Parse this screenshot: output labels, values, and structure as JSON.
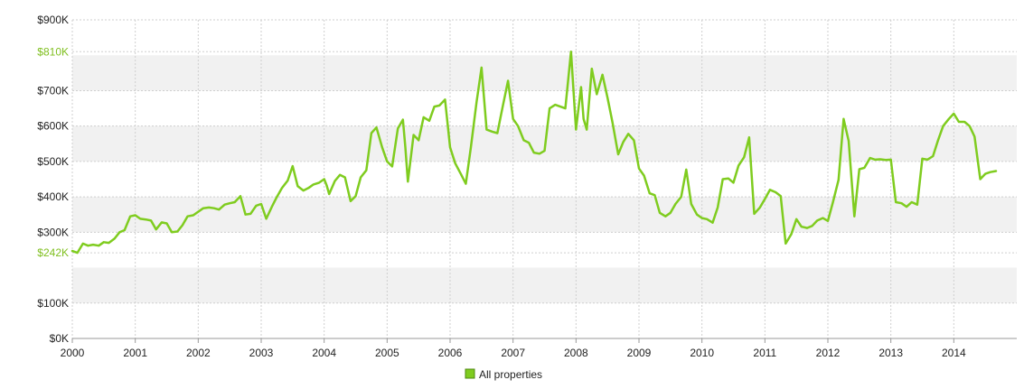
{
  "chart_data": {
    "type": "line",
    "title": "",
    "xlabel": "",
    "ylabel": "",
    "xlim": [
      2000,
      2015
    ],
    "ylim": [
      0,
      900000
    ],
    "grid": true,
    "legend_position": "bottom-center",
    "x_ticks": [
      "2000",
      "2001",
      "2002",
      "2003",
      "2004",
      "2005",
      "2006",
      "2007",
      "2008",
      "2009",
      "2010",
      "2011",
      "2012",
      "2013",
      "2014"
    ],
    "y_ticks": [
      {
        "label": "$0K",
        "value": 0
      },
      {
        "label": "$100K",
        "value": 100000
      },
      {
        "label": "$242K",
        "value": 242000,
        "highlight": true
      },
      {
        "label": "$300K",
        "value": 300000
      },
      {
        "label": "$400K",
        "value": 400000
      },
      {
        "label": "$500K",
        "value": 500000
      },
      {
        "label": "$600K",
        "value": 600000
      },
      {
        "label": "$700K",
        "value": 700000
      },
      {
        "label": "$810K",
        "value": 810000,
        "highlight": true
      },
      {
        "label": "$900K",
        "value": 900000
      }
    ],
    "line_color": "#7fcc1f",
    "highlight_tick_color": "#7fbf1f",
    "series": [
      {
        "name": "All properties",
        "color": "#7fcc1f",
        "points": [
          [
            2000.0,
            247000
          ],
          [
            2000.08,
            242000
          ],
          [
            2000.17,
            268000
          ],
          [
            2000.25,
            262000
          ],
          [
            2000.33,
            265000
          ],
          [
            2000.42,
            262000
          ],
          [
            2000.5,
            272000
          ],
          [
            2000.58,
            270000
          ],
          [
            2000.67,
            282000
          ],
          [
            2000.75,
            300000
          ],
          [
            2000.83,
            306000
          ],
          [
            2000.92,
            345000
          ],
          [
            2001.0,
            348000
          ],
          [
            2001.08,
            338000
          ],
          [
            2001.17,
            336000
          ],
          [
            2001.25,
            333000
          ],
          [
            2001.33,
            308000
          ],
          [
            2001.42,
            328000
          ],
          [
            2001.5,
            325000
          ],
          [
            2001.58,
            300000
          ],
          [
            2001.67,
            302000
          ],
          [
            2001.75,
            320000
          ],
          [
            2001.83,
            345000
          ],
          [
            2001.92,
            348000
          ],
          [
            2002.0,
            358000
          ],
          [
            2002.08,
            368000
          ],
          [
            2002.17,
            370000
          ],
          [
            2002.25,
            368000
          ],
          [
            2002.33,
            364000
          ],
          [
            2002.42,
            378000
          ],
          [
            2002.5,
            382000
          ],
          [
            2002.58,
            385000
          ],
          [
            2002.67,
            402000
          ],
          [
            2002.75,
            350000
          ],
          [
            2002.83,
            352000
          ],
          [
            2002.92,
            375000
          ],
          [
            2003.0,
            380000
          ],
          [
            2003.08,
            338000
          ],
          [
            2003.17,
            372000
          ],
          [
            2003.25,
            400000
          ],
          [
            2003.33,
            425000
          ],
          [
            2003.42,
            446000
          ],
          [
            2003.5,
            487000
          ],
          [
            2003.58,
            430000
          ],
          [
            2003.67,
            418000
          ],
          [
            2003.75,
            425000
          ],
          [
            2003.83,
            435000
          ],
          [
            2003.92,
            440000
          ],
          [
            2004.0,
            450000
          ],
          [
            2004.04,
            432000
          ],
          [
            2004.08,
            408000
          ],
          [
            2004.17,
            445000
          ],
          [
            2004.25,
            462000
          ],
          [
            2004.33,
            455000
          ],
          [
            2004.42,
            388000
          ],
          [
            2004.5,
            402000
          ],
          [
            2004.58,
            455000
          ],
          [
            2004.67,
            475000
          ],
          [
            2004.75,
            580000
          ],
          [
            2004.83,
            596000
          ],
          [
            2004.92,
            540000
          ],
          [
            2005.0,
            500000
          ],
          [
            2005.08,
            486000
          ],
          [
            2005.17,
            593000
          ],
          [
            2005.25,
            618000
          ],
          [
            2005.29,
            540000
          ],
          [
            2005.33,
            443000
          ],
          [
            2005.42,
            575000
          ],
          [
            2005.5,
            560000
          ],
          [
            2005.58,
            625000
          ],
          [
            2005.67,
            615000
          ],
          [
            2005.75,
            655000
          ],
          [
            2005.83,
            658000
          ],
          [
            2005.92,
            675000
          ],
          [
            2006.0,
            540000
          ],
          [
            2006.08,
            495000
          ],
          [
            2006.17,
            465000
          ],
          [
            2006.25,
            437000
          ],
          [
            2006.33,
            540000
          ],
          [
            2006.42,
            668000
          ],
          [
            2006.5,
            765000
          ],
          [
            2006.58,
            590000
          ],
          [
            2006.67,
            584000
          ],
          [
            2006.75,
            580000
          ],
          [
            2006.83,
            650000
          ],
          [
            2006.92,
            728000
          ],
          [
            2007.0,
            620000
          ],
          [
            2007.08,
            600000
          ],
          [
            2007.17,
            560000
          ],
          [
            2007.25,
            553000
          ],
          [
            2007.33,
            525000
          ],
          [
            2007.42,
            522000
          ],
          [
            2007.5,
            530000
          ],
          [
            2007.58,
            650000
          ],
          [
            2007.67,
            660000
          ],
          [
            2007.75,
            655000
          ],
          [
            2007.83,
            650000
          ],
          [
            2007.92,
            810000
          ],
          [
            2008.0,
            590000
          ],
          [
            2008.08,
            710000
          ],
          [
            2008.12,
            620000
          ],
          [
            2008.17,
            590000
          ],
          [
            2008.25,
            762000
          ],
          [
            2008.33,
            690000
          ],
          [
            2008.42,
            745000
          ],
          [
            2008.5,
            680000
          ],
          [
            2008.58,
            610000
          ],
          [
            2008.67,
            520000
          ],
          [
            2008.75,
            555000
          ],
          [
            2008.83,
            578000
          ],
          [
            2008.92,
            560000
          ],
          [
            2009.0,
            480000
          ],
          [
            2009.08,
            460000
          ],
          [
            2009.17,
            410000
          ],
          [
            2009.25,
            405000
          ],
          [
            2009.33,
            355000
          ],
          [
            2009.42,
            345000
          ],
          [
            2009.5,
            355000
          ],
          [
            2009.58,
            380000
          ],
          [
            2009.67,
            400000
          ],
          [
            2009.75,
            477000
          ],
          [
            2009.83,
            380000
          ],
          [
            2009.92,
            350000
          ],
          [
            2010.0,
            340000
          ],
          [
            2010.08,
            337000
          ],
          [
            2010.17,
            327000
          ],
          [
            2010.25,
            370000
          ],
          [
            2010.33,
            450000
          ],
          [
            2010.42,
            452000
          ],
          [
            2010.5,
            440000
          ],
          [
            2010.58,
            488000
          ],
          [
            2010.67,
            512000
          ],
          [
            2010.75,
            568000
          ],
          [
            2010.83,
            352000
          ],
          [
            2010.92,
            370000
          ],
          [
            2011.0,
            394000
          ],
          [
            2011.08,
            420000
          ],
          [
            2011.17,
            413000
          ],
          [
            2011.25,
            402000
          ],
          [
            2011.33,
            268000
          ],
          [
            2011.42,
            295000
          ],
          [
            2011.5,
            337000
          ],
          [
            2011.58,
            316000
          ],
          [
            2011.67,
            312000
          ],
          [
            2011.75,
            318000
          ],
          [
            2011.83,
            333000
          ],
          [
            2011.92,
            340000
          ],
          [
            2012.0,
            332000
          ],
          [
            2012.08,
            385000
          ],
          [
            2012.17,
            448000
          ],
          [
            2012.25,
            620000
          ],
          [
            2012.33,
            558000
          ],
          [
            2012.42,
            345000
          ],
          [
            2012.5,
            478000
          ],
          [
            2012.58,
            482000
          ],
          [
            2012.67,
            510000
          ],
          [
            2012.75,
            505000
          ],
          [
            2012.83,
            506000
          ],
          [
            2012.92,
            504000
          ],
          [
            2013.0,
            505000
          ],
          [
            2013.08,
            385000
          ],
          [
            2013.17,
            382000
          ],
          [
            2013.25,
            372000
          ],
          [
            2013.33,
            385000
          ],
          [
            2013.42,
            378000
          ],
          [
            2013.5,
            508000
          ],
          [
            2013.58,
            505000
          ],
          [
            2013.67,
            515000
          ],
          [
            2013.75,
            560000
          ],
          [
            2013.83,
            600000
          ],
          [
            2013.92,
            620000
          ],
          [
            2014.0,
            635000
          ],
          [
            2014.08,
            612000
          ],
          [
            2014.17,
            612000
          ],
          [
            2014.25,
            600000
          ],
          [
            2014.33,
            570000
          ],
          [
            2014.42,
            450000
          ],
          [
            2014.5,
            465000
          ],
          [
            2014.58,
            470000
          ],
          [
            2014.67,
            473000
          ]
        ]
      }
    ]
  }
}
